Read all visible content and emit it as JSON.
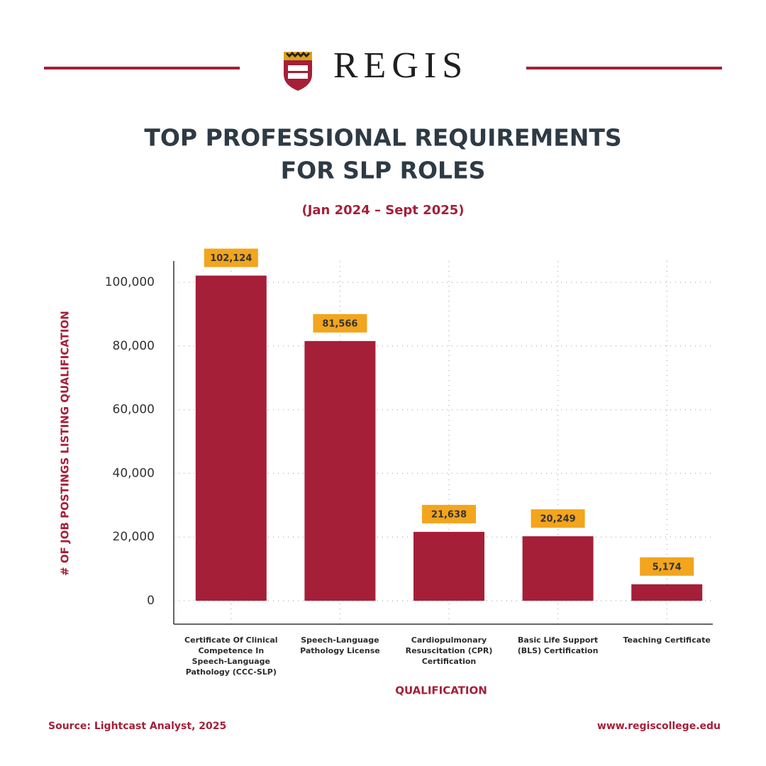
{
  "brand": "REGIS",
  "chart_data": {
    "type": "bar",
    "title": [
      "TOP PROFESSIONAL REQUIREMENTS",
      "FOR SLP ROLES"
    ],
    "subtitle": "(Jan 2024 – Sept 2025)",
    "y_label": "# OF JOB POSTINGS LISTING QUALIFICATION",
    "x_label": "QUALIFICATION",
    "categories": [
      "Certificate Of Clinical Competence In Speech-Language Pathology (CCC-SLP)",
      "Speech-Language Pathology License",
      "Cardiopulmonary Resuscitation (CPR) Certification",
      "Basic Life Support (BLS) Certification",
      "Teaching Certificate"
    ],
    "values": [
      102124,
      81566,
      21638,
      20249,
      5174
    ],
    "value_labels": [
      "102,124",
      "81,566",
      "21,638",
      "20,249",
      "5,174"
    ],
    "color": "#a51f38",
    "label_box_color": "#f2a51d",
    "ylim": [
      -7350,
      106700
    ],
    "yticks": [
      0,
      {
        "value": 20000,
        "label": "20,000"
      },
      {
        "value": 40000,
        "label": "40,000"
      },
      {
        "value": 60000,
        "label": "60,000"
      },
      {
        "value": 80000,
        "label": "80,000"
      },
      {
        "value": 100000,
        "label": "100,000"
      }
    ],
    "grid": true
  },
  "footer": {
    "source": "Source: Lightcast Analyst, 2025",
    "website": "www.regiscollege.edu"
  }
}
